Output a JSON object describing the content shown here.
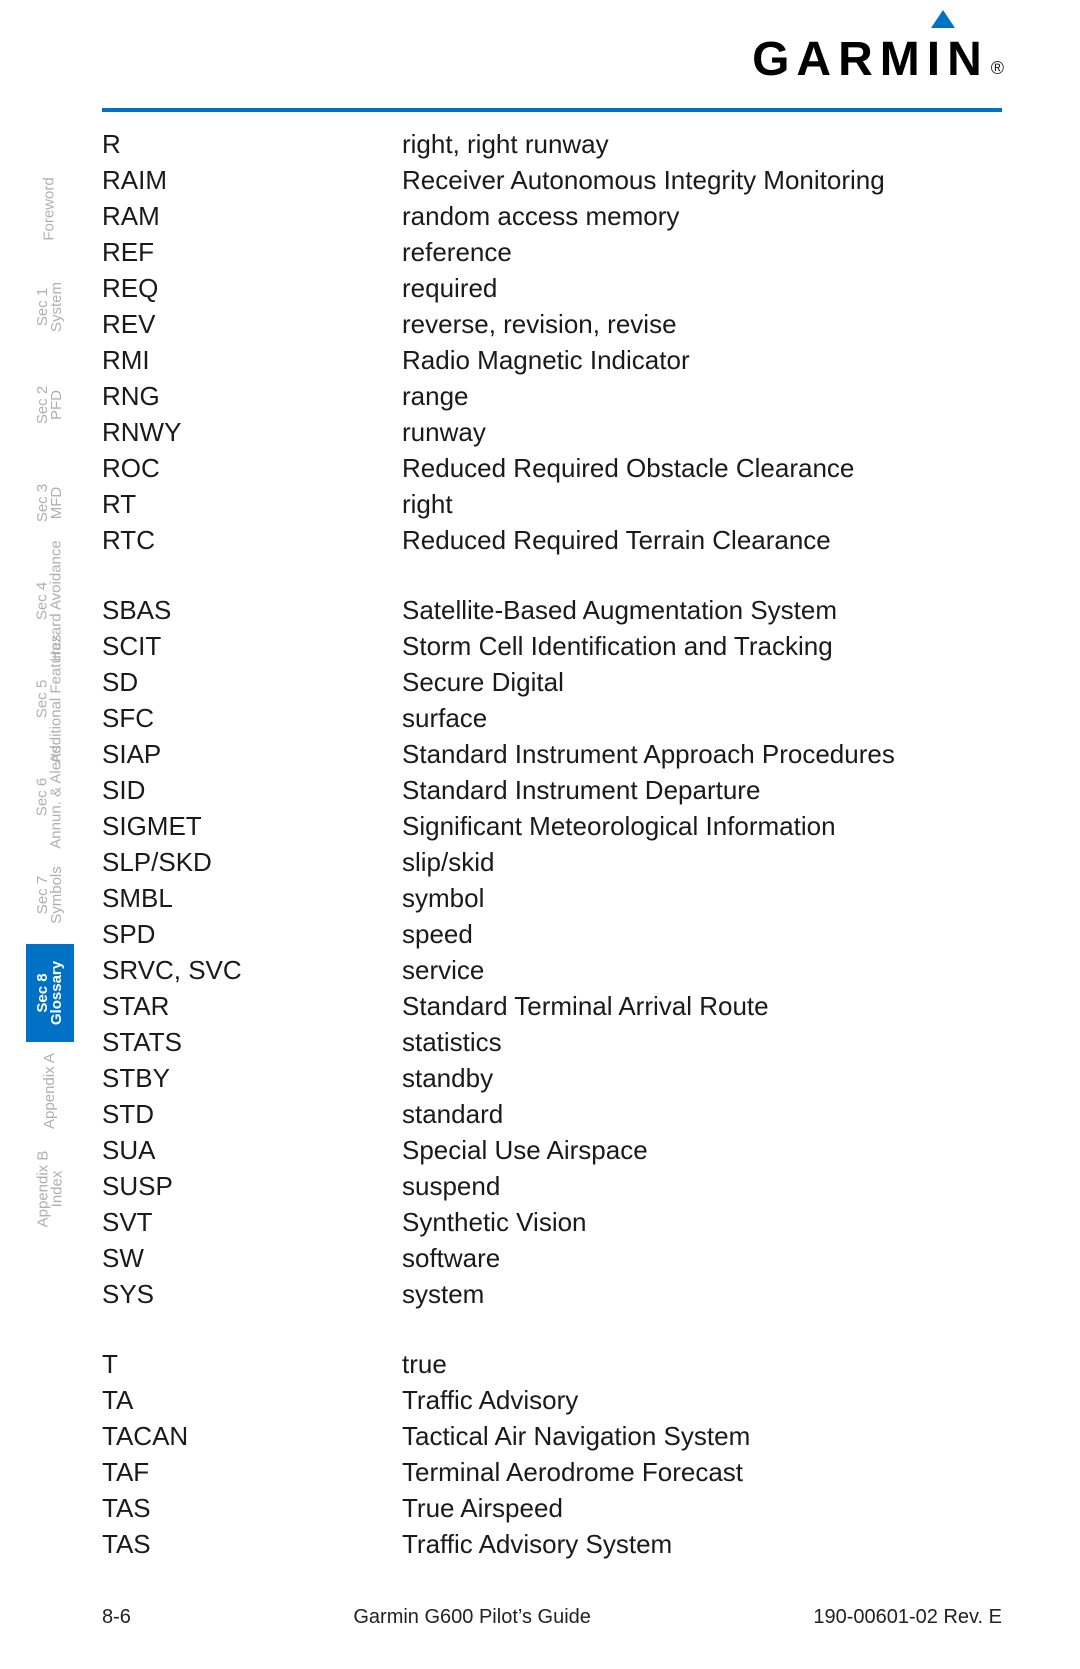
{
  "brand": "GARMIN",
  "registered": "®",
  "side_tabs": [
    {
      "line1": "",
      "line2": "Foreword",
      "active": false
    },
    {
      "line1": "Sec 1",
      "line2": "System",
      "active": false
    },
    {
      "line1": "Sec 2",
      "line2": "PFD",
      "active": false
    },
    {
      "line1": "Sec 3",
      "line2": "MFD",
      "active": false
    },
    {
      "line1": "Sec 4",
      "line2": "Hazard Avoidance",
      "active": false
    },
    {
      "line1": "Sec 5",
      "line2": "Additional Features",
      "active": false
    },
    {
      "line1": "Sec 6",
      "line2": "Annun. & Alerts",
      "active": false
    },
    {
      "line1": "Sec 7",
      "line2": "Symbols",
      "active": false
    },
    {
      "line1": "Sec 8",
      "line2": "Glossary",
      "active": true
    },
    {
      "line1": "",
      "line2": "Appendix A",
      "active": false
    },
    {
      "line1": "Appendix B",
      "line2": "Index",
      "active": false
    }
  ],
  "glossary": [
    [
      {
        "abbr": "R",
        "def": "right, right runway"
      },
      {
        "abbr": "RAIM",
        "def": "Receiver Autonomous Integrity Monitoring"
      },
      {
        "abbr": "RAM",
        "def": "random access memory"
      },
      {
        "abbr": "REF",
        "def": "reference"
      },
      {
        "abbr": "REQ",
        "def": "required"
      },
      {
        "abbr": "REV",
        "def": "reverse, revision, revise"
      },
      {
        "abbr": "RMI",
        "def": "Radio Magnetic Indicator"
      },
      {
        "abbr": "RNG",
        "def": "range"
      },
      {
        "abbr": "RNWY",
        "def": "runway"
      },
      {
        "abbr": "ROC",
        "def": "Reduced Required Obstacle Clearance"
      },
      {
        "abbr": "RT",
        "def": "right"
      },
      {
        "abbr": "RTC",
        "def": "Reduced Required Terrain Clearance"
      }
    ],
    [
      {
        "abbr": "SBAS",
        "def": "Satellite-Based Augmentation System"
      },
      {
        "abbr": "SCIT",
        "def": "Storm Cell Identification and Tracking"
      },
      {
        "abbr": "SD",
        "def": "Secure Digital"
      },
      {
        "abbr": "SFC",
        "def": "surface"
      },
      {
        "abbr": "SIAP",
        "def": "Standard Instrument Approach Procedures"
      },
      {
        "abbr": "SID",
        "def": "Standard Instrument Departure"
      },
      {
        "abbr": "SIGMET",
        "def": "Significant Meteorological Information"
      },
      {
        "abbr": "SLP/SKD",
        "def": "slip/skid"
      },
      {
        "abbr": "SMBL",
        "def": "symbol"
      },
      {
        "abbr": "SPD",
        "def": "speed"
      },
      {
        "abbr": "SRVC, SVC",
        "def": "service"
      },
      {
        "abbr": "STAR",
        "def": "Standard Terminal Arrival Route"
      },
      {
        "abbr": "STATS",
        "def": "statistics"
      },
      {
        "abbr": "STBY",
        "def": "standby"
      },
      {
        "abbr": "STD",
        "def": "standard"
      },
      {
        "abbr": "SUA",
        "def": "Special Use Airspace"
      },
      {
        "abbr": "SUSP",
        "def": "suspend"
      },
      {
        "abbr": "SVT",
        "def": "Synthetic Vision"
      },
      {
        "abbr": "SW",
        "def": "software"
      },
      {
        "abbr": "SYS",
        "def": "system"
      }
    ],
    [
      {
        "abbr": "T",
        "def": "true"
      },
      {
        "abbr": "TA",
        "def": "Traffic Advisory"
      },
      {
        "abbr": "TACAN",
        "def": "Tactical Air Navigation System"
      },
      {
        "abbr": "TAF",
        "def": "Terminal Aerodrome Forecast"
      },
      {
        "abbr": "TAS",
        "def": "True Airspeed"
      },
      {
        "abbr": "TAS",
        "def": "Traffic Advisory System"
      }
    ]
  ],
  "footer": {
    "page": "8-6",
    "center": "Garmin G600 Pilot’s Guide",
    "right": "190-00601-02  Rev. E"
  },
  "colors": {
    "accent": "#0072c6",
    "tab_inactive": "#b0b0b0",
    "text": "#1a1a1a"
  }
}
